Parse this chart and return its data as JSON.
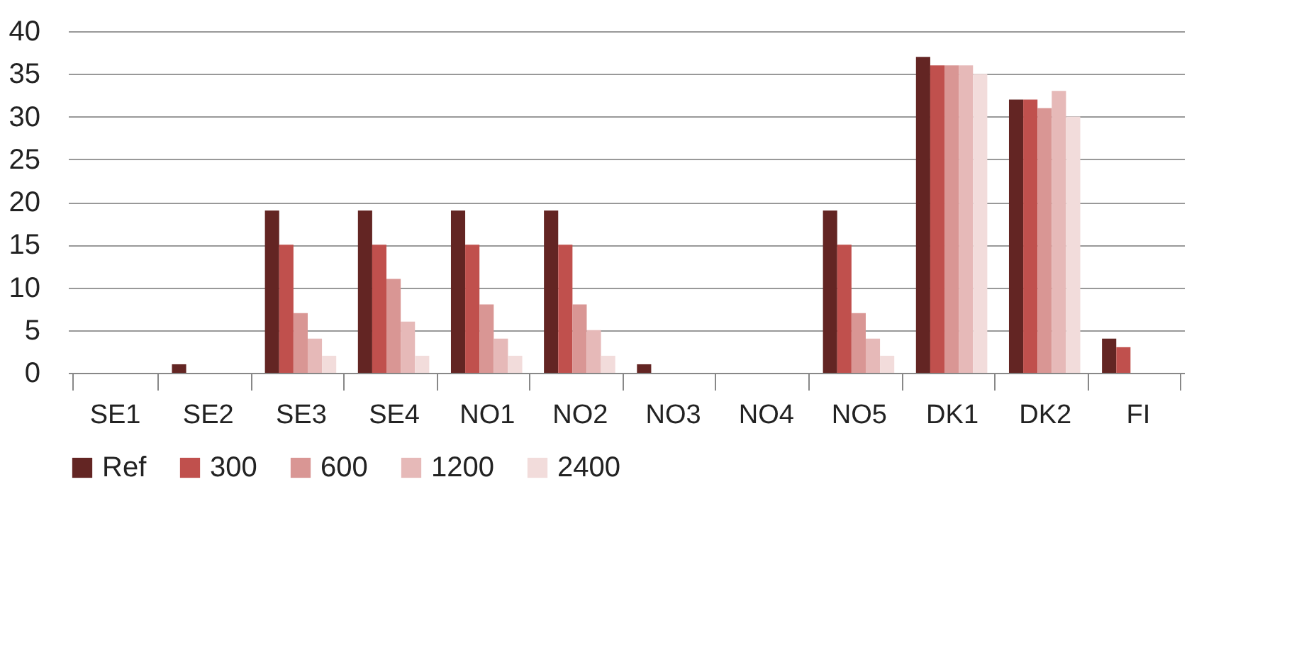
{
  "chart_data": {
    "type": "bar",
    "categories": [
      "SE1",
      "SE2",
      "SE3",
      "SE4",
      "NO1",
      "NO2",
      "NO3",
      "NO4",
      "NO5",
      "DK1",
      "DK2",
      "FI"
    ],
    "series": [
      {
        "name": "Ref",
        "color": "#632523",
        "values": [
          0,
          1,
          19,
          19,
          19,
          19,
          1,
          0,
          19,
          37,
          32,
          4
        ]
      },
      {
        "name": "300",
        "color": "#c0504d",
        "values": [
          0,
          0,
          15,
          15,
          15,
          15,
          0,
          0,
          15,
          36,
          32,
          3
        ]
      },
      {
        "name": "600",
        "color": "#d99694",
        "values": [
          0,
          0,
          7,
          11,
          8,
          8,
          0,
          0,
          7,
          36,
          31,
          0
        ]
      },
      {
        "name": "1200",
        "color": "#e6b9b8",
        "values": [
          0,
          0,
          4,
          6,
          4,
          5,
          0,
          0,
          4,
          36,
          33,
          0
        ]
      },
      {
        "name": "2400",
        "color": "#f2dcdb",
        "values": [
          0,
          0,
          2,
          2,
          2,
          2,
          0,
          0,
          2,
          35,
          30,
          0
        ]
      }
    ],
    "ylim": [
      0,
      40
    ],
    "yticks": [
      0,
      5,
      10,
      15,
      20,
      25,
      30,
      35,
      40
    ],
    "grid": "y",
    "legend": "bottom"
  }
}
